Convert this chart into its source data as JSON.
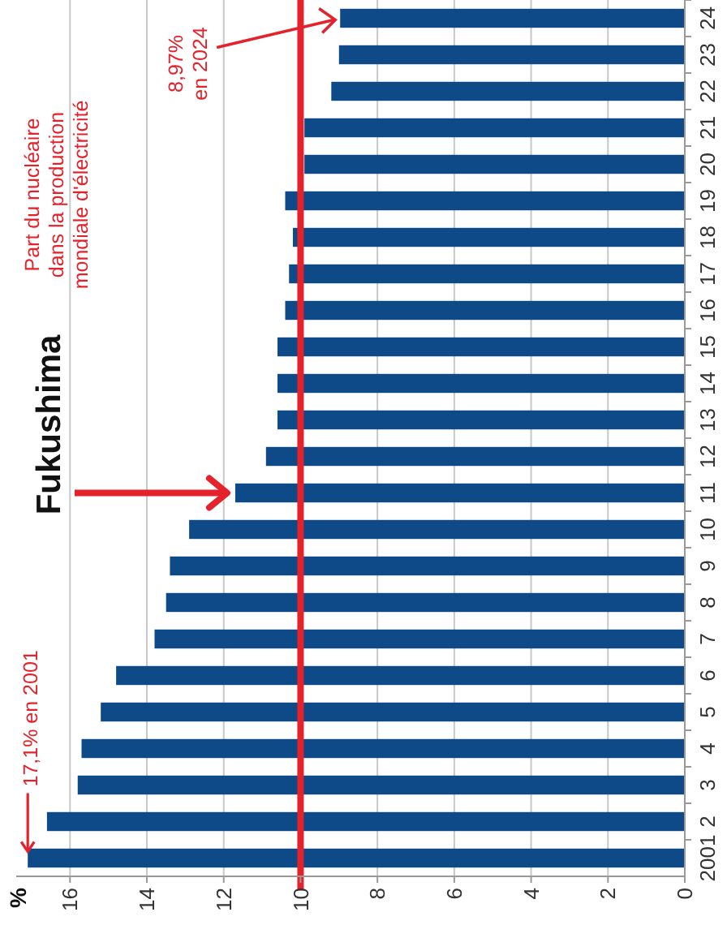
{
  "chart_data": {
    "type": "bar",
    "orientation": "horizontal",
    "categories": [
      "24",
      "23",
      "22",
      "21",
      "20",
      "19",
      "18",
      "17",
      "16",
      "15",
      "14",
      "13",
      "12",
      "11",
      "10",
      "9",
      "8",
      "7",
      "6",
      "5",
      "4",
      "3",
      "2",
      "2001"
    ],
    "values": [
      8.97,
      9.0,
      9.2,
      9.9,
      9.9,
      10.4,
      10.2,
      10.3,
      10.4,
      10.6,
      10.6,
      10.6,
      10.9,
      11.7,
      12.9,
      13.4,
      13.5,
      13.8,
      14.8,
      15.2,
      15.7,
      15.8,
      16.6,
      17.1
    ],
    "color": "#0d4a87",
    "xlim": [
      17.4,
      0
    ],
    "xticks": [
      16,
      14,
      12,
      10,
      8,
      6,
      4,
      2,
      0
    ],
    "grid": "x",
    "ref_lines": [
      {
        "axis": "x",
        "value": 10,
        "color": "#e3222b"
      }
    ],
    "annotations": [
      "Part du nucléaire\ndans la production\nmondiale d'électricité",
      {
        "text": "Fukushima",
        "x": 11.7,
        "y": "11"
      },
      {
        "text": "17,1% en 2001",
        "x": 17.1,
        "y": "2001"
      },
      {
        "text": "8,97%\nen 2024",
        "x": 8.97,
        "y": "24"
      },
      "%"
    ]
  }
}
